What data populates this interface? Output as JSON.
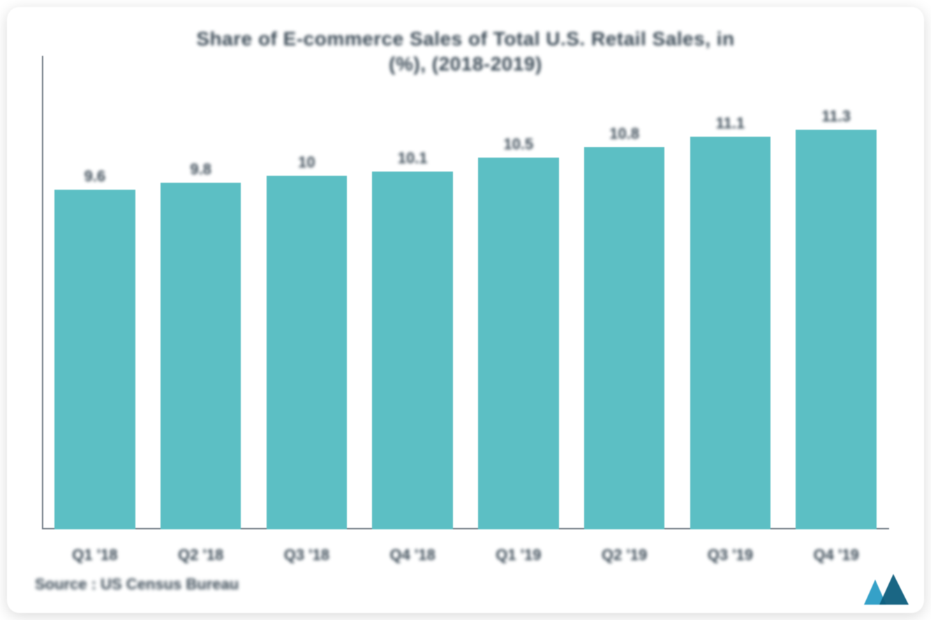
{
  "chart": {
    "type": "bar",
    "title_line1": "Share of E-commerce Sales of Total U.S. Retail Sales, in",
    "title_line2": "(%), (2018-2019)",
    "title_fontsize": 28,
    "title_color": "#3b4a56",
    "categories": [
      "Q1 '18",
      "Q2 '18",
      "Q3 '18",
      "Q4 '18",
      "Q1 '19",
      "Q2 '19",
      "Q3 '19",
      "Q4 '19"
    ],
    "values": [
      9.6,
      9.8,
      10,
      10.1,
      10.5,
      10.8,
      11.1,
      11.3
    ],
    "value_labels": [
      "9.6",
      "9.8",
      "10",
      "10.1",
      "10.5",
      "10.8",
      "11.1",
      "11.3"
    ],
    "bar_color": "#5cbfc4",
    "bar_width_pct": 76,
    "value_fontsize": 22,
    "value_color": "#3b4a56",
    "xlabel_fontsize": 22,
    "xlabel_color": "#3b4a56",
    "axis_color": "#6b7680",
    "background_color": "#ffffff",
    "ylim": [
      0,
      12
    ],
    "y_axis_visible": true,
    "x_axis_visible": true,
    "grid": false
  },
  "source": {
    "text": "Source : US Census Bureau",
    "fontsize": 22,
    "color": "#3b4a56"
  },
  "logo": {
    "name": "mordor-intelligence-logo",
    "color1": "#1f97c2",
    "color2": "#0e5e7d"
  }
}
